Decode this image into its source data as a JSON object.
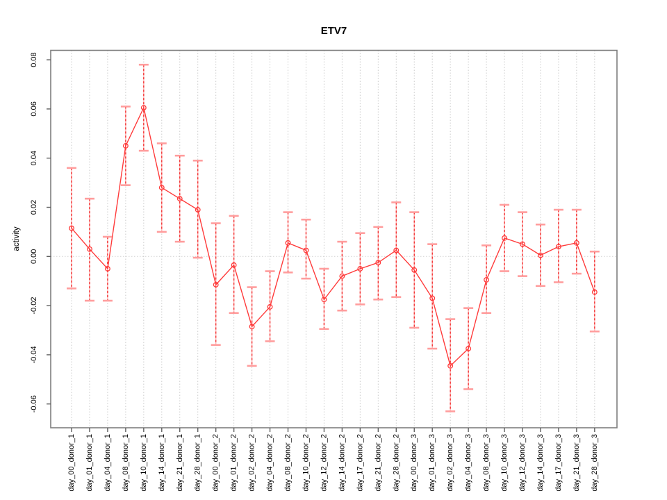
{
  "title": "ETV7",
  "chart_data": {
    "type": "line",
    "title": "ETV7",
    "xlabel": "",
    "ylabel": "activity",
    "legend_position": "none",
    "grid": "vertical dotted gridlines at every category; dotted horizontal line at y=0",
    "marker": "open-circle",
    "error_bars": true,
    "categories": [
      "day_00_donor_1",
      "day_01_donor_1",
      "day_04_donor_1",
      "day_08_donor_1",
      "day_10_donor_1",
      "day_14_donor_1",
      "day_21_donor_1",
      "day_28_donor_1",
      "day_00_donor_2",
      "day_01_donor_2",
      "day_02_donor_2",
      "day_04_donor_2",
      "day_08_donor_2",
      "day_10_donor_2",
      "day_12_donor_2",
      "day_14_donor_2",
      "day_17_donor_2",
      "day_21_donor_2",
      "day_28_donor_2",
      "day_00_donor_3",
      "day_01_donor_3",
      "day_02_donor_3",
      "day_04_donor_3",
      "day_08_donor_3",
      "day_10_donor_3",
      "day_12_donor_3",
      "day_14_donor_3",
      "day_17_donor_3",
      "day_21_donor_3",
      "day_28_donor_3"
    ],
    "series": [
      {
        "name": "activity",
        "values": [
          0.0115,
          0.003,
          -0.005,
          0.045,
          0.0605,
          0.028,
          0.0235,
          0.019,
          -0.0115,
          -0.0035,
          -0.0285,
          -0.0205,
          0.0055,
          0.0025,
          -0.0175,
          -0.008,
          -0.005,
          -0.0025,
          0.0025,
          -0.0055,
          -0.017,
          -0.0445,
          -0.0375,
          -0.0095,
          0.0075,
          0.005,
          0.0005,
          0.004,
          0.0055,
          -0.0145
        ],
        "upper": [
          0.036,
          0.0235,
          0.008,
          0.061,
          0.078,
          0.046,
          0.041,
          0.039,
          0.0135,
          0.0165,
          -0.0125,
          -0.006,
          0.018,
          0.015,
          -0.005,
          0.006,
          0.0095,
          0.012,
          0.022,
          0.018,
          0.005,
          -0.0255,
          -0.021,
          0.0045,
          0.021,
          0.018,
          0.013,
          0.019,
          0.019,
          0.002
        ],
        "lower": [
          -0.013,
          -0.018,
          -0.018,
          0.029,
          0.043,
          0.01,
          0.006,
          -0.0005,
          -0.036,
          -0.023,
          -0.0445,
          -0.0345,
          -0.0065,
          -0.009,
          -0.0295,
          -0.022,
          -0.0195,
          -0.0175,
          -0.0165,
          -0.029,
          -0.0375,
          -0.063,
          -0.054,
          -0.023,
          -0.006,
          -0.008,
          -0.012,
          -0.0105,
          -0.007,
          -0.0305
        ]
      }
    ],
    "yticks": [
      0.08,
      0.06,
      0.04,
      0.02,
      0.0,
      -0.02,
      -0.04,
      -0.06
    ],
    "ytick_labels": [
      "0.08",
      "0.06",
      "0.04",
      "0.02",
      "0.00",
      "-0.02",
      "-0.04",
      "-0.06"
    ],
    "ylim": [
      -0.0697,
      0.0838
    ],
    "colors": {
      "line": "#ff3b3b",
      "marker_stroke": "#ff3b3b",
      "error_bar_cap": "#ff9d9d",
      "error_bar_underlay": "#ffb3b3",
      "error_bar_dash": "#f23131",
      "gridline": "#cbcbcb",
      "zero_line": "#d2d2d2",
      "frame": "#7f7f7f",
      "tick": "#5f5f5f",
      "text": "#000000",
      "background": "#ffffff"
    }
  }
}
